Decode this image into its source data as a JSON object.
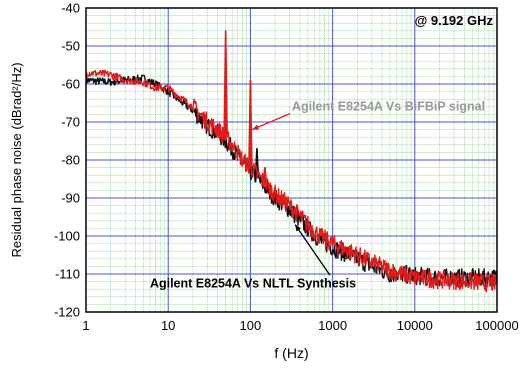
{
  "chart_data": {
    "type": "line",
    "title": "",
    "annotation": "@ 9.192 GHz",
    "xlabel": "f (Hz)",
    "ylabel": "Residual phase noise (dBrad²/Hz)",
    "xscale": "log",
    "xlim": [
      1,
      100000
    ],
    "ylim": [
      -120,
      -40
    ],
    "x_ticks": [
      1,
      10,
      100,
      1000,
      10000,
      100000
    ],
    "x_tick_labels": [
      "1",
      "10",
      "100",
      "1000",
      "10000",
      "100000"
    ],
    "y_ticks": [
      -40,
      -50,
      -60,
      -70,
      -80,
      -90,
      -100,
      -110,
      -120
    ],
    "y_tick_labels": [
      "-40",
      "-50",
      "-60",
      "-70",
      "-80",
      "-90",
      "-100",
      "-110",
      "-120"
    ],
    "grid": true,
    "legend": "none (series labeled by in-plot annotations)",
    "series": [
      {
        "name": "Agilent E8254A Vs BiFBiP signal",
        "color": "#e01b1b",
        "x": [
          1,
          2,
          3,
          5,
          7,
          10,
          15,
          20,
          30,
          40,
          50,
          60,
          70,
          80,
          100,
          150,
          200,
          300,
          500,
          700,
          1000,
          2000,
          3000,
          5000,
          7000,
          10000,
          20000,
          50000,
          100000
        ],
        "y": [
          -57,
          -57.5,
          -59,
          -59.5,
          -61,
          -61,
          -64,
          -66,
          -70,
          -72,
          -74,
          -76,
          -78,
          -80,
          -82,
          -86,
          -89,
          -92,
          -97,
          -100,
          -102,
          -105,
          -107,
          -109,
          -110,
          -111,
          -111.5,
          -112,
          -112.5
        ]
      },
      {
        "name": "Agilent E8254A Vs NLTL Synthesis",
        "color": "#111111",
        "x": [
          1,
          2,
          3,
          5,
          7,
          10,
          15,
          20,
          30,
          40,
          50,
          60,
          70,
          80,
          100,
          150,
          200,
          300,
          500,
          700,
          1000,
          2000,
          3000,
          5000,
          7000,
          10000,
          20000,
          50000,
          100000
        ],
        "y": [
          -59,
          -59.5,
          -59,
          -58.5,
          -60,
          -62,
          -65,
          -67,
          -71,
          -73,
          -75,
          -77,
          -79,
          -81,
          -83,
          -87,
          -90,
          -93,
          -98,
          -101,
          -103,
          -106,
          -108,
          -110,
          -110,
          -110.5,
          -111,
          -111,
          -111
        ]
      }
    ],
    "spikes": [
      {
        "x": 50,
        "peak": -46,
        "series": 0
      },
      {
        "x": 100,
        "peak": -59,
        "series": 0
      },
      {
        "x": 150,
        "peak": -82,
        "series": 0
      },
      {
        "x": 120,
        "peak": -77,
        "series": 1
      }
    ],
    "annotations": [
      {
        "text": "Agilent E8254A Vs BiFBiP signal",
        "color": "#999999",
        "x": 320,
        "y": -67,
        "arrow_to": [
          105,
          -72
        ],
        "arrow_color": "#e01b1b"
      },
      {
        "text": "Agilent E8254A Vs NLTL Synthesis",
        "color": "#000000",
        "x": 6,
        "y": -113.5,
        "arrow_to": [
          350,
          -97
        ],
        "arrow_color": "#000000"
      }
    ]
  }
}
